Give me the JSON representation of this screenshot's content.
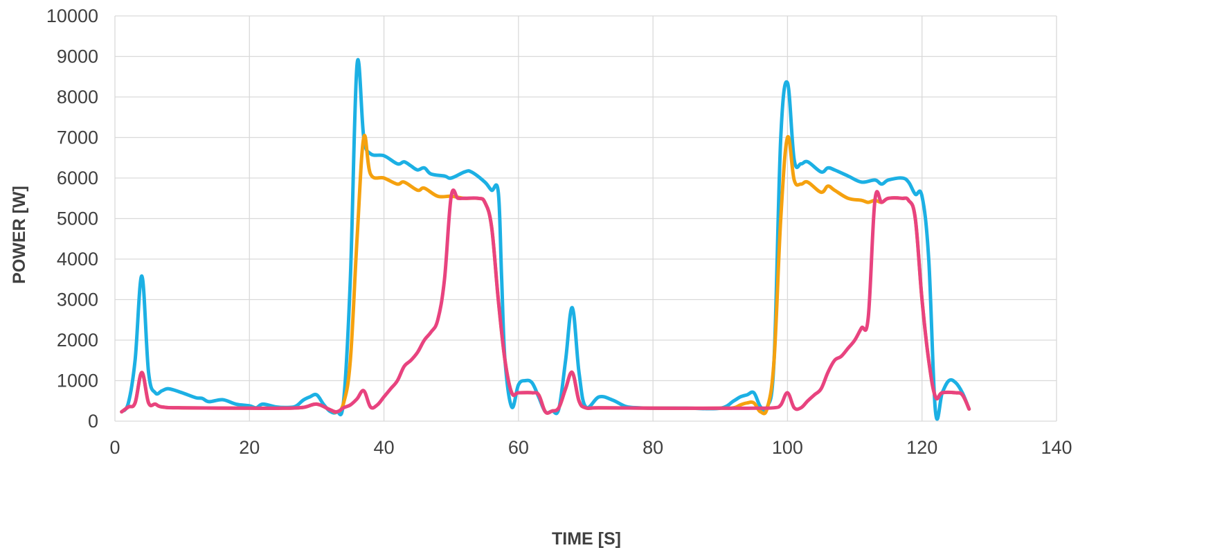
{
  "chart_data": {
    "type": "line",
    "title": "",
    "xlabel": "TIME [S]",
    "ylabel": "POWER [W]",
    "xlim": [
      0,
      140
    ],
    "ylim": [
      0,
      10000
    ],
    "x_ticks": [
      0,
      20,
      40,
      60,
      80,
      100,
      120,
      140
    ],
    "y_ticks": [
      0,
      1000,
      2000,
      3000,
      4000,
      5000,
      6000,
      7000,
      8000,
      9000,
      10000
    ],
    "grid": true,
    "legend": "none",
    "series": [
      {
        "color": "#1cb0e4",
        "points": [
          [
            1,
            230
          ],
          [
            2,
            450
          ],
          [
            3,
            1500
          ],
          [
            4,
            3580
          ],
          [
            5,
            1200
          ],
          [
            6,
            700
          ],
          [
            7,
            750
          ],
          [
            8,
            800
          ],
          [
            10,
            700
          ],
          [
            12,
            580
          ],
          [
            13,
            560
          ],
          [
            14,
            480
          ],
          [
            16,
            530
          ],
          [
            18,
            420
          ],
          [
            20,
            380
          ],
          [
            21,
            330
          ],
          [
            22,
            420
          ],
          [
            24,
            350
          ],
          [
            26,
            340
          ],
          [
            27,
            380
          ],
          [
            28,
            520
          ],
          [
            29,
            600
          ],
          [
            30,
            650
          ],
          [
            31,
            420
          ],
          [
            32,
            240
          ],
          [
            33,
            230
          ],
          [
            34,
            500
          ],
          [
            35,
            3500
          ],
          [
            36,
            8800
          ],
          [
            37,
            7000
          ],
          [
            38,
            6600
          ],
          [
            40,
            6550
          ],
          [
            42,
            6350
          ],
          [
            43,
            6400
          ],
          [
            44,
            6300
          ],
          [
            45,
            6200
          ],
          [
            46,
            6250
          ],
          [
            47,
            6100
          ],
          [
            49,
            6050
          ],
          [
            50,
            6000
          ],
          [
            52,
            6150
          ],
          [
            53,
            6150
          ],
          [
            55,
            5900
          ],
          [
            56,
            5700
          ],
          [
            57,
            5650
          ],
          [
            57.5,
            3500
          ],
          [
            58,
            1500
          ],
          [
            59,
            350
          ],
          [
            60,
            900
          ],
          [
            61,
            1000
          ],
          [
            62,
            950
          ],
          [
            63,
            600
          ],
          [
            64,
            230
          ],
          [
            65,
            250
          ],
          [
            66,
            300
          ],
          [
            67,
            1500
          ],
          [
            68,
            2800
          ],
          [
            69,
            1200
          ],
          [
            70,
            350
          ],
          [
            72,
            600
          ],
          [
            74,
            520
          ],
          [
            76,
            360
          ],
          [
            78,
            330
          ],
          [
            80,
            320
          ],
          [
            85,
            320
          ],
          [
            90,
            320
          ],
          [
            92,
            500
          ],
          [
            93,
            600
          ],
          [
            94,
            650
          ],
          [
            95,
            700
          ],
          [
            96,
            350
          ],
          [
            97,
            350
          ],
          [
            98,
            1500
          ],
          [
            99,
            7000
          ],
          [
            100,
            8350
          ],
          [
            101,
            6450
          ],
          [
            102,
            6350
          ],
          [
            103,
            6400
          ],
          [
            105,
            6150
          ],
          [
            106,
            6250
          ],
          [
            107,
            6200
          ],
          [
            109,
            6050
          ],
          [
            111,
            5900
          ],
          [
            113,
            5950
          ],
          [
            114,
            5850
          ],
          [
            115,
            5950
          ],
          [
            117,
            6000
          ],
          [
            118,
            5900
          ],
          [
            119,
            5600
          ],
          [
            120,
            5550
          ],
          [
            121,
            4000
          ],
          [
            122,
            250
          ],
          [
            123,
            700
          ],
          [
            124,
            1000
          ],
          [
            125,
            950
          ],
          [
            126,
            700
          ],
          [
            127,
            300
          ]
        ]
      },
      {
        "color": "#f5a10f",
        "points": [
          [
            1,
            230
          ],
          [
            2,
            350
          ],
          [
            3,
            450
          ],
          [
            4,
            1200
          ],
          [
            5,
            450
          ],
          [
            6,
            420
          ],
          [
            7,
            350
          ],
          [
            10,
            330
          ],
          [
            20,
            320
          ],
          [
            25,
            320
          ],
          [
            28,
            340
          ],
          [
            30,
            420
          ],
          [
            32,
            280
          ],
          [
            33,
            230
          ],
          [
            34,
            450
          ],
          [
            35,
            1500
          ],
          [
            36,
            4500
          ],
          [
            37,
            7000
          ],
          [
            38,
            6100
          ],
          [
            40,
            6000
          ],
          [
            42,
            5850
          ],
          [
            43,
            5900
          ],
          [
            45,
            5700
          ],
          [
            46,
            5750
          ],
          [
            48,
            5550
          ],
          [
            50,
            5550
          ],
          [
            52,
            5500
          ],
          [
            54,
            5500
          ],
          [
            55,
            5400
          ],
          [
            56,
            4800
          ],
          [
            57,
            3000
          ],
          [
            58,
            1500
          ],
          [
            59,
            700
          ],
          [
            60,
            700
          ],
          [
            62,
            700
          ],
          [
            63,
            650
          ],
          [
            64,
            230
          ],
          [
            65,
            250
          ],
          [
            66,
            330
          ],
          [
            67,
            800
          ],
          [
            68,
            1200
          ],
          [
            69,
            500
          ],
          [
            70,
            330
          ],
          [
            72,
            330
          ],
          [
            80,
            320
          ],
          [
            90,
            320
          ],
          [
            92,
            330
          ],
          [
            93,
            400
          ],
          [
            94,
            450
          ],
          [
            95,
            450
          ],
          [
            96,
            230
          ],
          [
            97,
            330
          ],
          [
            98,
            1500
          ],
          [
            99,
            5000
          ],
          [
            100,
            7000
          ],
          [
            101,
            5950
          ],
          [
            102,
            5850
          ],
          [
            103,
            5900
          ],
          [
            105,
            5650
          ],
          [
            106,
            5800
          ],
          [
            107,
            5700
          ],
          [
            109,
            5500
          ],
          [
            111,
            5450
          ],
          [
            112,
            5400
          ],
          [
            113,
            5450
          ],
          [
            114,
            5400
          ],
          [
            115,
            5500
          ],
          [
            117,
            5500
          ],
          [
            118,
            5450
          ],
          [
            119,
            5000
          ],
          [
            120,
            3000
          ],
          [
            121,
            1500
          ],
          [
            122,
            600
          ],
          [
            123,
            700
          ],
          [
            125,
            700
          ],
          [
            126,
            650
          ],
          [
            127,
            300
          ]
        ]
      },
      {
        "color": "#e8437f",
        "points": [
          [
            1,
            230
          ],
          [
            2,
            350
          ],
          [
            3,
            450
          ],
          [
            4,
            1200
          ],
          [
            5,
            450
          ],
          [
            6,
            420
          ],
          [
            7,
            350
          ],
          [
            10,
            330
          ],
          [
            20,
            320
          ],
          [
            25,
            320
          ],
          [
            28,
            340
          ],
          [
            30,
            420
          ],
          [
            32,
            280
          ],
          [
            33,
            230
          ],
          [
            34,
            330
          ],
          [
            35,
            400
          ],
          [
            36,
            550
          ],
          [
            37,
            750
          ],
          [
            38,
            350
          ],
          [
            39,
            400
          ],
          [
            40,
            600
          ],
          [
            41,
            800
          ],
          [
            42,
            1000
          ],
          [
            43,
            1350
          ],
          [
            44,
            1500
          ],
          [
            45,
            1700
          ],
          [
            46,
            2000
          ],
          [
            47,
            2200
          ],
          [
            48,
            2500
          ],
          [
            49,
            3500
          ],
          [
            50,
            5550
          ],
          [
            51,
            5500
          ],
          [
            52,
            5500
          ],
          [
            54,
            5500
          ],
          [
            55,
            5400
          ],
          [
            56,
            4800
          ],
          [
            57,
            3000
          ],
          [
            58,
            1500
          ],
          [
            59,
            700
          ],
          [
            60,
            700
          ],
          [
            62,
            700
          ],
          [
            63,
            650
          ],
          [
            64,
            230
          ],
          [
            65,
            250
          ],
          [
            66,
            330
          ],
          [
            67,
            800
          ],
          [
            68,
            1200
          ],
          [
            69,
            500
          ],
          [
            70,
            330
          ],
          [
            72,
            330
          ],
          [
            80,
            320
          ],
          [
            90,
            320
          ],
          [
            95,
            320
          ],
          [
            98,
            330
          ],
          [
            99,
            400
          ],
          [
            100,
            700
          ],
          [
            101,
            330
          ],
          [
            102,
            330
          ],
          [
            103,
            500
          ],
          [
            104,
            650
          ],
          [
            105,
            800
          ],
          [
            106,
            1200
          ],
          [
            107,
            1500
          ],
          [
            108,
            1600
          ],
          [
            109,
            1800
          ],
          [
            110,
            2000
          ],
          [
            111,
            2300
          ],
          [
            112,
            2550
          ],
          [
            113,
            5450
          ],
          [
            114,
            5400
          ],
          [
            115,
            5500
          ],
          [
            117,
            5500
          ],
          [
            118,
            5450
          ],
          [
            119,
            5000
          ],
          [
            120,
            3000
          ],
          [
            121,
            1500
          ],
          [
            122,
            600
          ],
          [
            123,
            700
          ],
          [
            125,
            700
          ],
          [
            126,
            650
          ],
          [
            127,
            300
          ]
        ]
      }
    ]
  }
}
